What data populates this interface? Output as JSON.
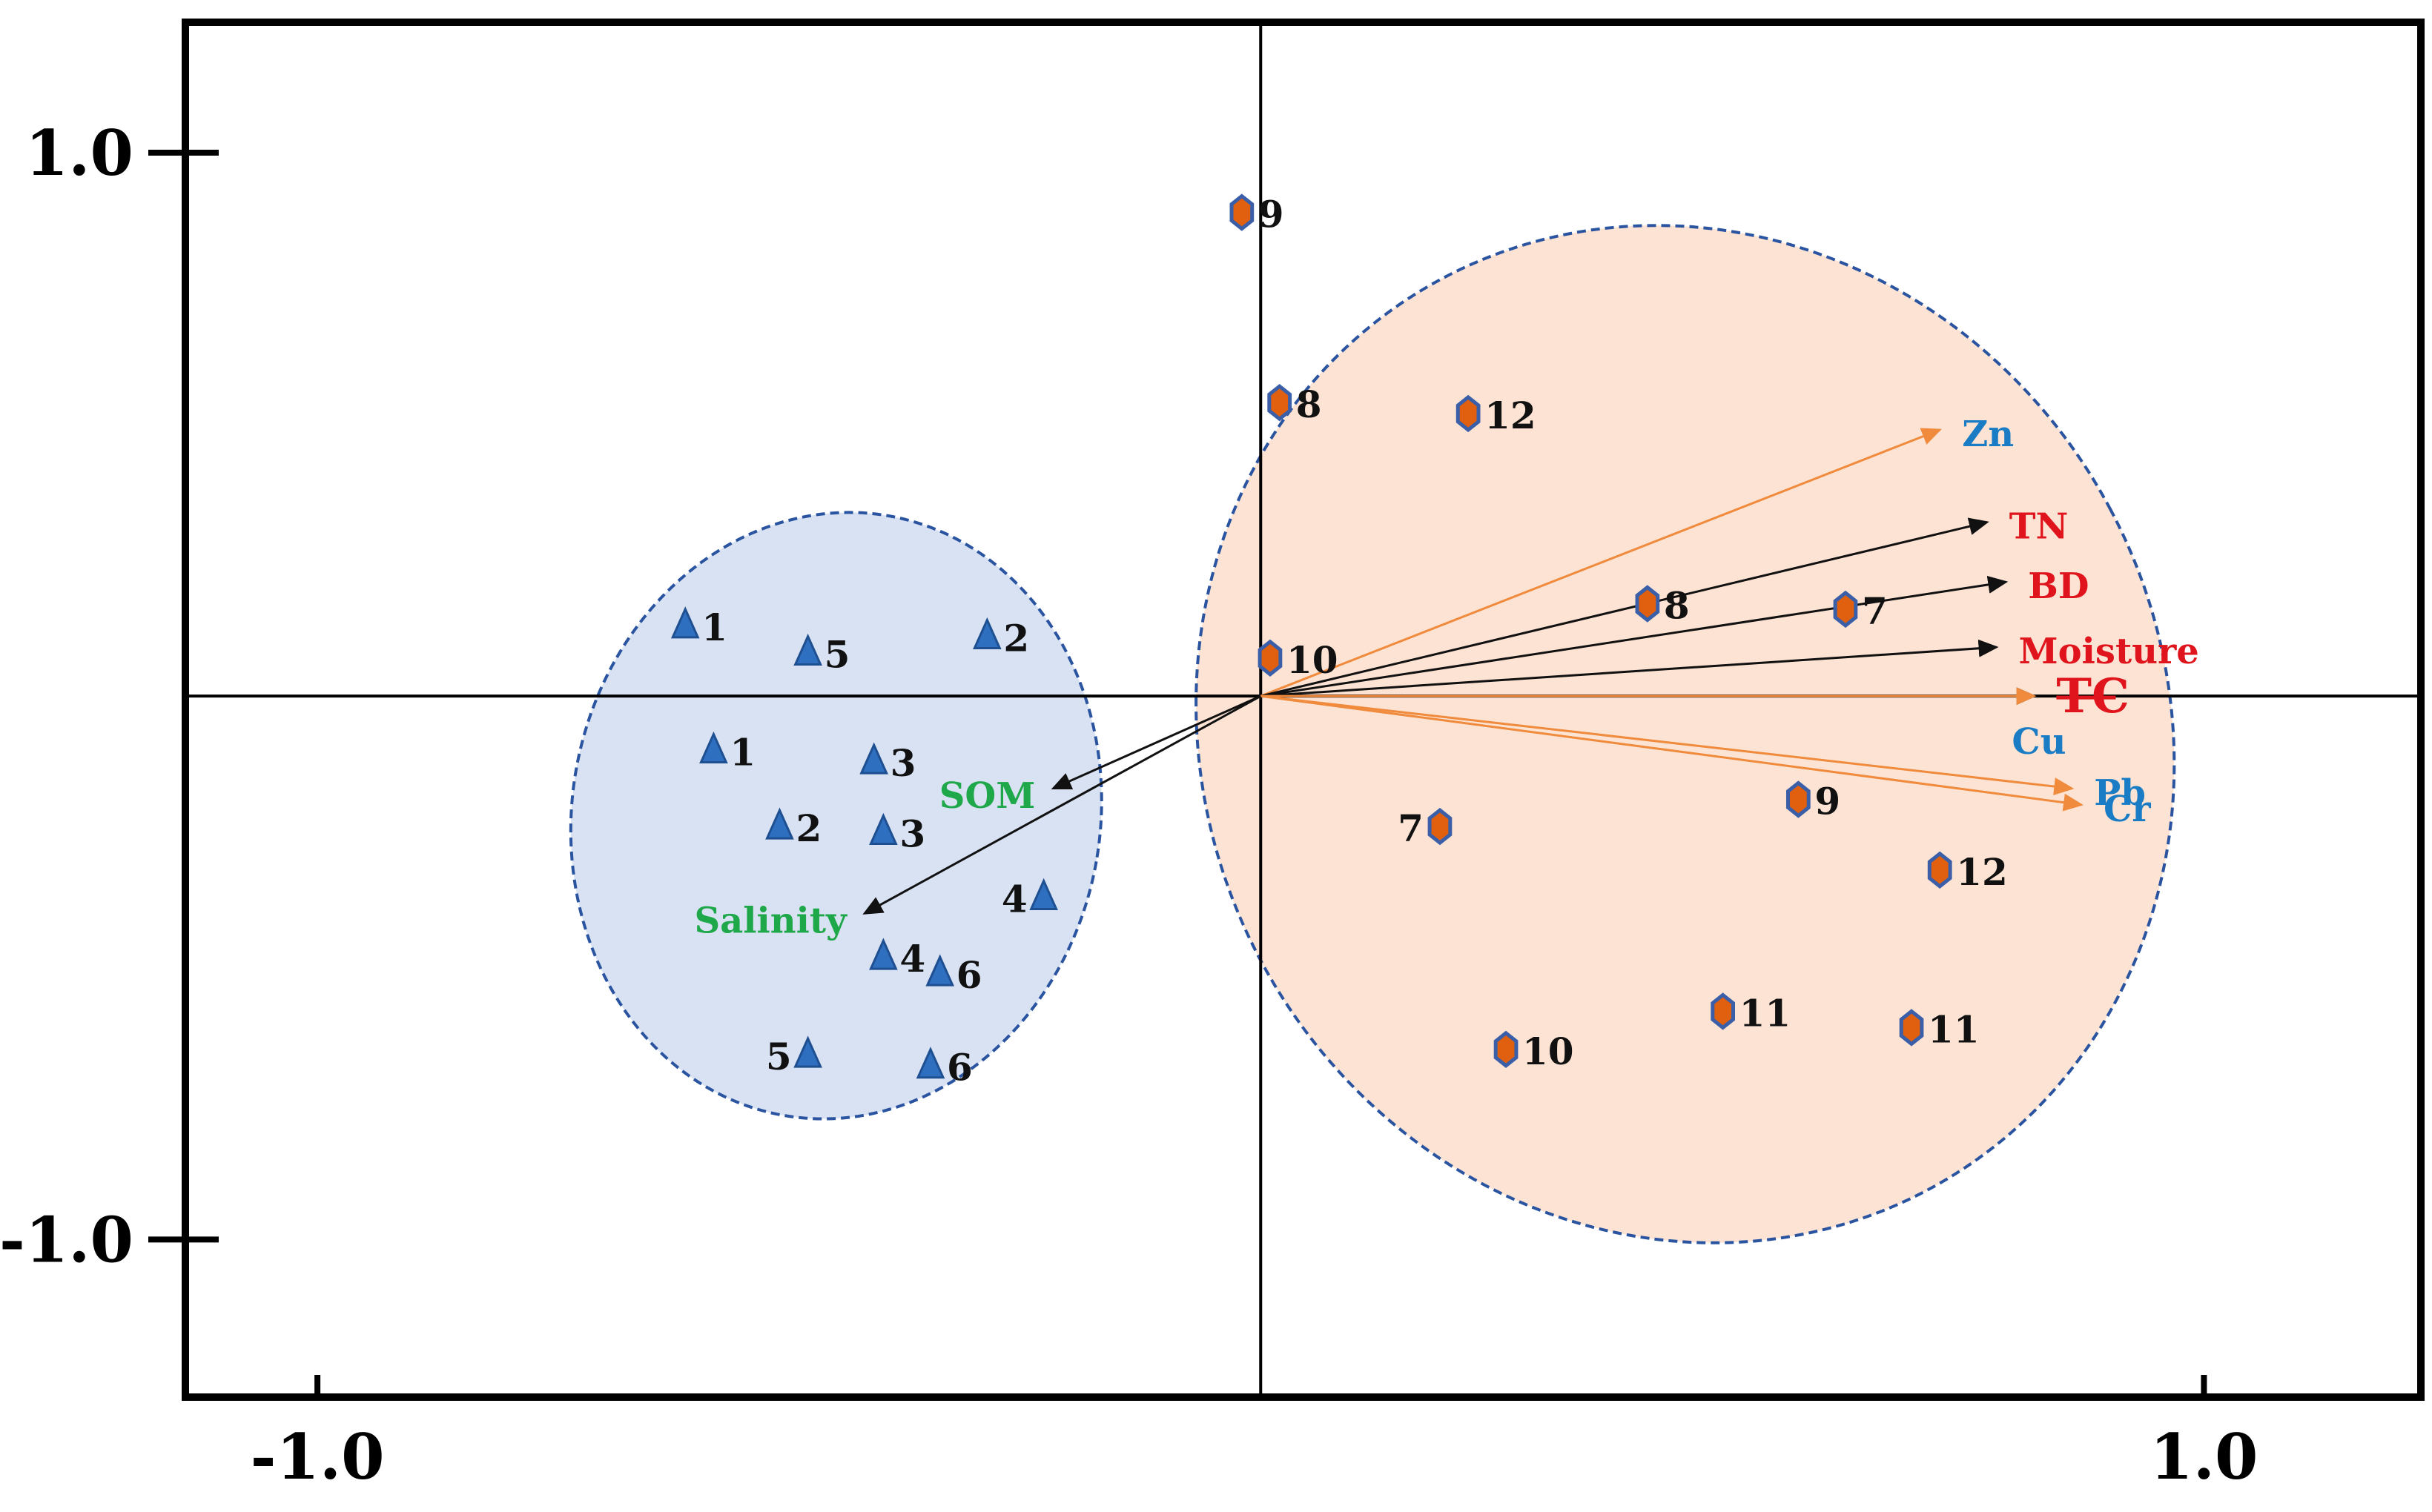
{
  "chart_data": {
    "type": "scatter",
    "title": "",
    "xlabel": "",
    "ylabel": "",
    "xlim": [
      -1.14,
      1.23
    ],
    "ylim": [
      -1.29,
      1.24
    ],
    "x_ticks": [
      {
        "value": -1.0,
        "label": "-1.0"
      },
      {
        "value": 1.0,
        "label": "1.0"
      }
    ],
    "y_ticks": [
      {
        "value": 1.0,
        "label": "1.0"
      },
      {
        "value": -1.0,
        "label": "-1.0"
      }
    ],
    "grid": false,
    "axes_lines_at_origin": true,
    "colors": {
      "triangle_fill": "#2f6fc0",
      "triangle_stroke": "#1e4f91",
      "hexagon_fill": "#e0600f",
      "hexagon_stroke": "#3a5fa8",
      "blue_ellipse_fill": "#d8e2f3",
      "orange_ellipse_fill": "#fde3d3",
      "ellipse_stroke": "#2a54a0",
      "arrow_black": "#111111",
      "arrow_orange": "#f08a3c",
      "label_red": "#e0141c",
      "label_blue": "#1a7cc4",
      "label_green": "#1fa84a"
    },
    "ellipses": [
      {
        "name": "",
        "color": "blue",
        "cx": -0.45,
        "cy": -0.22,
        "rx": 0.28,
        "ry": 0.56,
        "rotation_deg": 10
      },
      {
        "name": "",
        "color": "orange",
        "cx": 0.45,
        "cy": -0.07,
        "rx": 0.51,
        "ry": 0.95,
        "rotation_deg": -28
      }
    ],
    "series": [
      {
        "marker": "triangle",
        "points": [
          {
            "label": "1",
            "x": -0.61,
            "y": 0.13,
            "label_pos": "right"
          },
          {
            "label": "5",
            "x": -0.48,
            "y": 0.08,
            "label_pos": "right"
          },
          {
            "label": "2",
            "x": -0.29,
            "y": 0.11,
            "label_pos": "right"
          },
          {
            "label": "1",
            "x": -0.58,
            "y": -0.1,
            "label_pos": "right"
          },
          {
            "label": "3",
            "x": -0.41,
            "y": -0.12,
            "label_pos": "right"
          },
          {
            "label": "2",
            "x": -0.51,
            "y": -0.24,
            "label_pos": "right"
          },
          {
            "label": "3",
            "x": -0.4,
            "y": -0.25,
            "label_pos": "right"
          },
          {
            "label": "4",
            "x": -0.23,
            "y": -0.37,
            "label_pos": "left"
          },
          {
            "label": "4",
            "x": -0.4,
            "y": -0.48,
            "label_pos": "right"
          },
          {
            "label": "6",
            "x": -0.34,
            "y": -0.51,
            "label_pos": "right"
          },
          {
            "label": "5",
            "x": -0.48,
            "y": -0.66,
            "label_pos": "left"
          },
          {
            "label": "6",
            "x": -0.35,
            "y": -0.68,
            "label_pos": "right"
          }
        ]
      },
      {
        "marker": "hexagon",
        "points": [
          {
            "label": "9",
            "x": -0.02,
            "y": 0.89,
            "label_pos": "right"
          },
          {
            "label": "8",
            "x": 0.02,
            "y": 0.54,
            "label_pos": "right"
          },
          {
            "label": "12",
            "x": 0.22,
            "y": 0.52,
            "label_pos": "right"
          },
          {
            "label": "8",
            "x": 0.41,
            "y": 0.17,
            "label_pos": "right"
          },
          {
            "label": "7",
            "x": 0.62,
            "y": 0.16,
            "label_pos": "right"
          },
          {
            "label": "10",
            "x": 0.01,
            "y": 0.07,
            "label_pos": "right"
          },
          {
            "label": "9",
            "x": 0.57,
            "y": -0.19,
            "label_pos": "right"
          },
          {
            "label": "7",
            "x": 0.19,
            "y": -0.24,
            "label_pos": "left"
          },
          {
            "label": "12",
            "x": 0.72,
            "y": -0.32,
            "label_pos": "right"
          },
          {
            "label": "11",
            "x": 0.49,
            "y": -0.58,
            "label_pos": "right"
          },
          {
            "label": "11",
            "x": 0.69,
            "y": -0.61,
            "label_pos": "right"
          },
          {
            "label": "10",
            "x": 0.26,
            "y": -0.65,
            "label_pos": "right"
          }
        ]
      }
    ],
    "vectors": [
      {
        "label": "Zn",
        "x": 0.72,
        "y": 0.49,
        "arrow_color": "orange",
        "label_color": "blue"
      },
      {
        "label": "TN",
        "x": 0.77,
        "y": 0.32,
        "arrow_color": "black",
        "label_color": "red"
      },
      {
        "label": "BD",
        "x": 0.79,
        "y": 0.21,
        "arrow_color": "black",
        "label_color": "red"
      },
      {
        "label": "Moisture",
        "x": 0.78,
        "y": 0.09,
        "arrow_color": "black",
        "label_color": "red"
      },
      {
        "label": "TC",
        "x": 0.82,
        "y": 0.0,
        "arrow_color": "black",
        "label_color": "red"
      },
      {
        "label": "Cu",
        "x": 0.82,
        "y": 0.0,
        "arrow_color": "orange",
        "label_color": "blue"
      },
      {
        "label": "Pb",
        "x": 0.86,
        "y": -0.17,
        "arrow_color": "orange",
        "label_color": "blue"
      },
      {
        "label": "Cr",
        "x": 0.87,
        "y": -0.2,
        "arrow_color": "orange",
        "label_color": "blue"
      },
      {
        "label": "SOM",
        "x": -0.22,
        "y": -0.17,
        "arrow_color": "black",
        "label_color": "green"
      },
      {
        "label": "Salinity",
        "x": -0.42,
        "y": -0.4,
        "arrow_color": "black",
        "label_color": "green"
      }
    ]
  }
}
